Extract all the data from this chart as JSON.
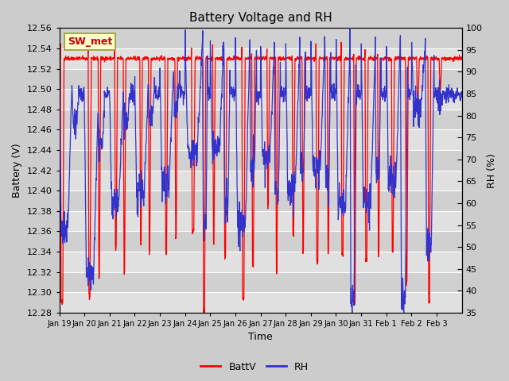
{
  "title": "Battery Voltage and RH",
  "xlabel": "Time",
  "ylabel_left": "Battery (V)",
  "ylabel_right": "RH (%)",
  "ylim_left": [
    12.28,
    12.56
  ],
  "ylim_right": [
    35,
    100
  ],
  "yticks_left": [
    12.28,
    12.3,
    12.32,
    12.34,
    12.36,
    12.38,
    12.4,
    12.42,
    12.44,
    12.46,
    12.48,
    12.5,
    12.52,
    12.54,
    12.56
  ],
  "yticks_right": [
    35,
    40,
    45,
    50,
    55,
    60,
    65,
    70,
    75,
    80,
    85,
    90,
    95,
    100
  ],
  "xtick_labels": [
    "Jan 19",
    "Jan 20",
    "Jan 21",
    "Jan 22",
    "Jan 23",
    "Jan 24",
    "Jan 25",
    "Jan 26",
    "Jan 27",
    "Jan 28",
    "Jan 29",
    "Jan 30",
    "Jan 31",
    "Feb 1",
    "Feb 2",
    "Feb 3"
  ],
  "battv_color": "#FF0000",
  "rh_color": "#3333CC",
  "fig_bg_color": "#DDDDDD",
  "plot_bg_color": "#C8C8C8",
  "band_light": "#E8E8E8",
  "band_dark": "#D0D0D0",
  "grid_color": "#FFFFFF",
  "label_box_facecolor": "#FFFFCC",
  "label_box_edgecolor": "#996633",
  "label_text": "SW_met",
  "legend_battv": "BattV",
  "legend_rh": "RH",
  "title_fontsize": 11,
  "axis_label_fontsize": 9,
  "tick_fontsize": 8,
  "legend_fontsize": 9
}
